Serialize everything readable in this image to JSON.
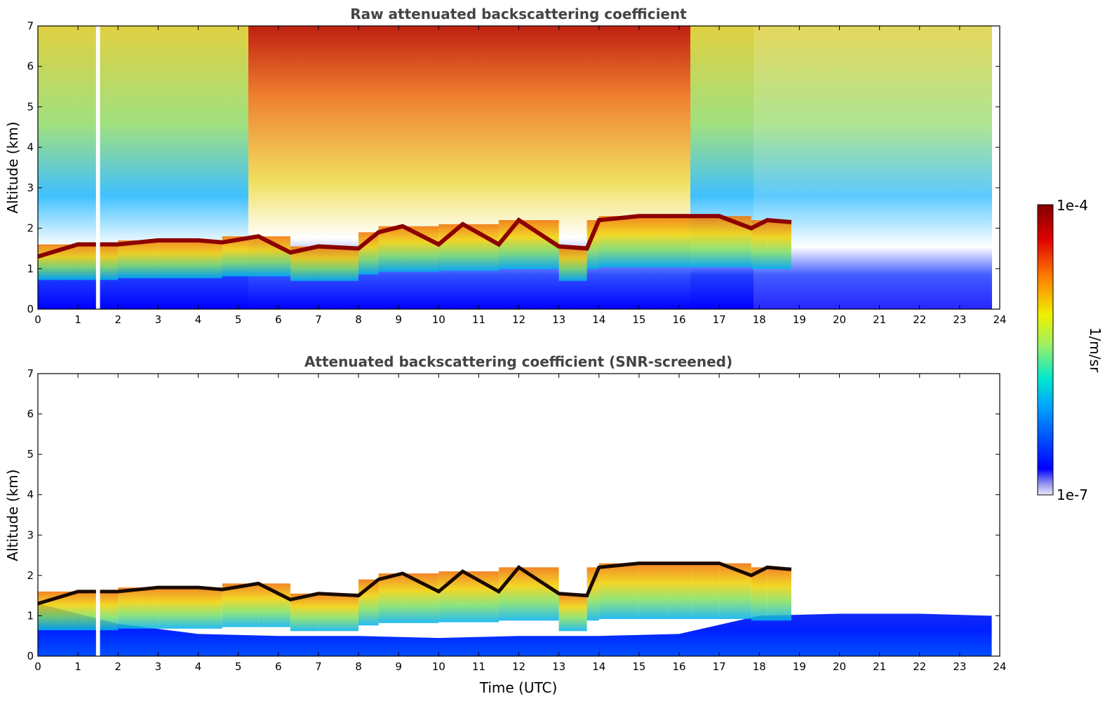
{
  "chart_data": [
    {
      "type": "heatmap",
      "title": "Raw attenuated backscattering coefficient",
      "xlabel": "",
      "ylabel": "Altitude (km)",
      "xlim": [
        0,
        24
      ],
      "ylim": [
        0,
        7
      ],
      "x_ticks": [
        0,
        1,
        2,
        3,
        4,
        5,
        6,
        7,
        8,
        9,
        10,
        11,
        12,
        13,
        14,
        15,
        16,
        17,
        18,
        19,
        20,
        21,
        22,
        23,
        24
      ],
      "y_ticks": [
        0,
        1,
        2,
        3,
        4,
        5,
        6,
        7
      ],
      "grid": false,
      "data_gaps_utc": [
        [
          1.45,
          1.55
        ]
      ],
      "cloud_top_km": {
        "x": [
          0,
          1,
          2,
          3,
          4,
          4.6,
          5.5,
          6.3,
          7,
          8,
          8.5,
          9.1,
          10,
          10.6,
          11.5,
          12,
          13,
          13.7,
          14,
          15,
          15.7,
          16.3,
          17,
          17.8,
          18.2,
          18.8
        ],
        "y": [
          1.3,
          1.6,
          1.6,
          1.7,
          1.7,
          1.65,
          1.8,
          1.4,
          1.55,
          1.5,
          1.9,
          2.05,
          1.6,
          2.1,
          1.6,
          2.2,
          1.55,
          1.5,
          2.2,
          2.3,
          2.3,
          2.3,
          2.3,
          2.0,
          2.2,
          2.15
        ]
      }
    },
    {
      "type": "heatmap",
      "title": "Attenuated backscattering coefficient (SNR-screened)",
      "xlabel": "Time (UTC)",
      "ylabel": "Altitude (km)",
      "xlim": [
        0,
        24
      ],
      "ylim": [
        0,
        7
      ],
      "x_ticks": [
        0,
        1,
        2,
        3,
        4,
        5,
        6,
        7,
        8,
        9,
        10,
        11,
        12,
        13,
        14,
        15,
        16,
        17,
        18,
        19,
        20,
        21,
        22,
        23,
        24
      ],
      "y_ticks": [
        0,
        1,
        2,
        3,
        4,
        5,
        6,
        7
      ],
      "grid": false,
      "data_gaps_utc": [
        [
          1.45,
          1.55
        ]
      ],
      "boundary_layer_top_km": {
        "x": [
          0,
          2,
          4,
          6,
          8,
          10,
          12,
          14,
          16,
          18,
          20,
          22,
          23.8
        ],
        "y": [
          1.3,
          0.8,
          0.55,
          0.5,
          0.5,
          0.45,
          0.5,
          0.5,
          0.55,
          1.0,
          1.05,
          1.05,
          1.0
        ]
      },
      "cloud_top_km": {
        "x": [
          0,
          1,
          2,
          3,
          4,
          4.6,
          5.5,
          6.3,
          7,
          8,
          8.5,
          9.1,
          10,
          10.6,
          11.5,
          12,
          13,
          13.7,
          14,
          15,
          15.7,
          16.3,
          17,
          17.8,
          18.2,
          18.8
        ],
        "y": [
          1.3,
          1.6,
          1.6,
          1.7,
          1.7,
          1.65,
          1.8,
          1.4,
          1.55,
          1.5,
          1.9,
          2.05,
          1.6,
          2.1,
          1.6,
          2.2,
          1.55,
          1.5,
          2.2,
          2.3,
          2.3,
          2.3,
          2.3,
          2.0,
          2.2,
          2.15
        ]
      }
    }
  ],
  "colorbar": {
    "min_label": "1e-7",
    "max_label": "1e-4",
    "unit_label": "1/m/sr",
    "colormap": "jet",
    "colors": [
      "#e8e8f8",
      "#0000ff",
      "#00a0ff",
      "#00e8d0",
      "#a0f060",
      "#f0f000",
      "#ff8000",
      "#e00000",
      "#800000"
    ]
  }
}
